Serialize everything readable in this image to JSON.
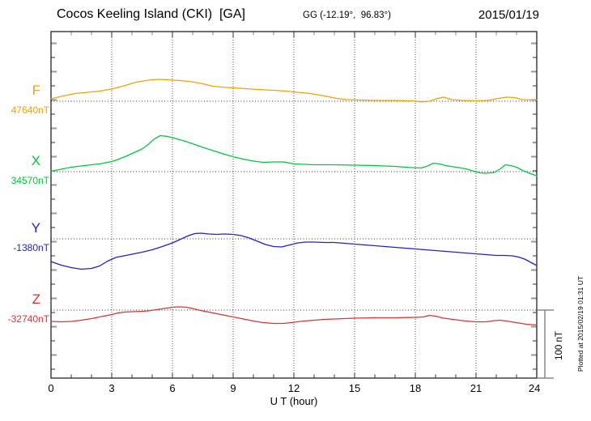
{
  "header": {
    "title": "Cocos Keeling Island (CKI)  [GA]",
    "coordinates": "GG (-12.19°,  96.83°)",
    "date": "2015/01/19"
  },
  "footer": {
    "plotted_note": "Plotted at 2015/02/19 01:31 UT"
  },
  "chart_data": {
    "type": "line",
    "title": "Cocos Keeling Island (CKI)  [GA]",
    "xlabel": "U T (hour)",
    "x_range_hours": [
      0,
      24
    ],
    "x_tick_labels": [
      "0",
      "3",
      "6",
      "9",
      "12",
      "15",
      "18",
      "21",
      "24"
    ],
    "grid": "dotted vertical lines every 3 hours; dotted horizontal baseline at each trace base value",
    "legend_position": "left margin, one colored letter and base value per trace",
    "scale_bar": {
      "label": "100 nT",
      "span_nT": 100
    },
    "series": [
      {
        "label": "F",
        "base_label": "47640nT",
        "base_nT": 47640,
        "color": "#F2A400",
        "points_units": "[hour UT, delta nT from base]",
        "points": [
          [
            0,
            3.6
          ],
          [
            0.6,
            7.7
          ],
          [
            1.2,
            11.3
          ],
          [
            1.8,
            13.1
          ],
          [
            2.4,
            14.9
          ],
          [
            3,
            17.9
          ],
          [
            3.6,
            22.6
          ],
          [
            4.2,
            28
          ],
          [
            4.8,
            31
          ],
          [
            5.2,
            32.1
          ],
          [
            5.6,
            31.9
          ],
          [
            6,
            31
          ],
          [
            6.4,
            30.4
          ],
          [
            6.8,
            29.2
          ],
          [
            7.2,
            27.4
          ],
          [
            7.6,
            25
          ],
          [
            8,
            22
          ],
          [
            8.4,
            20.8
          ],
          [
            9,
            19.6
          ],
          [
            9.6,
            18.5
          ],
          [
            10.2,
            17.3
          ],
          [
            11,
            16.1
          ],
          [
            11.6,
            14.9
          ],
          [
            12.2,
            13.1
          ],
          [
            12.8,
            11.3
          ],
          [
            13.4,
            8.3
          ],
          [
            14,
            4.8
          ],
          [
            14.6,
            2.4
          ],
          [
            15.2,
            1.8
          ],
          [
            16,
            1.2
          ],
          [
            17,
            1
          ],
          [
            17.8,
            0.6
          ],
          [
            18.3,
            -1
          ],
          [
            18.7,
            0
          ],
          [
            19.1,
            4.2
          ],
          [
            19.4,
            6
          ],
          [
            19.8,
            2.4
          ],
          [
            20.3,
            1.2
          ],
          [
            21,
            0.6
          ],
          [
            21.6,
            1.2
          ],
          [
            22.1,
            4.2
          ],
          [
            22.5,
            6
          ],
          [
            22.9,
            5.4
          ],
          [
            23.3,
            2.4
          ],
          [
            23.7,
            1.8
          ],
          [
            24,
            1.8
          ]
        ]
      },
      {
        "label": "X",
        "base_label": "34570nT",
        "base_nT": 34570,
        "color": "#00C83C",
        "points_units": "[hour UT, delta nT from base]",
        "points": [
          [
            0,
            0.6
          ],
          [
            0.5,
            3.6
          ],
          [
            1,
            6.5
          ],
          [
            1.5,
            8.3
          ],
          [
            2,
            10.1
          ],
          [
            2.5,
            11.9
          ],
          [
            3,
            14.9
          ],
          [
            3.3,
            17.9
          ],
          [
            3.7,
            22.6
          ],
          [
            4.1,
            28
          ],
          [
            4.5,
            33.3
          ],
          [
            4.8,
            40
          ],
          [
            5.1,
            48
          ],
          [
            5.4,
            53
          ],
          [
            5.7,
            52
          ],
          [
            6,
            50
          ],
          [
            6.5,
            45.8
          ],
          [
            7,
            41.1
          ],
          [
            7.5,
            35.7
          ],
          [
            8,
            31
          ],
          [
            8.5,
            26.2
          ],
          [
            9,
            22
          ],
          [
            9.5,
            18.5
          ],
          [
            10,
            15.5
          ],
          [
            10.5,
            13.7
          ],
          [
            11,
            14.3
          ],
          [
            11.5,
            14.3
          ],
          [
            12,
            11.3
          ],
          [
            13,
            10.1
          ],
          [
            14,
            10.1
          ],
          [
            15,
            9.5
          ],
          [
            16,
            8.9
          ],
          [
            17,
            7.7
          ],
          [
            17.8,
            6
          ],
          [
            18.3,
            5.4
          ],
          [
            18.6,
            8.3
          ],
          [
            18.9,
            12.5
          ],
          [
            19.2,
            11.3
          ],
          [
            19.5,
            8.9
          ],
          [
            20,
            6.5
          ],
          [
            20.5,
            4.2
          ],
          [
            20.9,
            0.6
          ],
          [
            21.2,
            -1.8
          ],
          [
            21.5,
            -2.4
          ],
          [
            21.9,
            -1.2
          ],
          [
            22.2,
            4.2
          ],
          [
            22.45,
            10.1
          ],
          [
            22.7,
            8.9
          ],
          [
            23,
            6.5
          ],
          [
            23.3,
            1.8
          ],
          [
            23.6,
            -1.8
          ],
          [
            23.8,
            -4.2
          ],
          [
            24,
            -6
          ]
        ]
      },
      {
        "label": "Y",
        "base_label": "-1380nT",
        "base_nT": -1380,
        "color": "#2222CC",
        "points_units": "[hour UT, delta nT from base]",
        "points": [
          [
            0,
            -33.3
          ],
          [
            0.5,
            -38.7
          ],
          [
            1,
            -42.3
          ],
          [
            1.5,
            -44.6
          ],
          [
            2,
            -43.5
          ],
          [
            2.4,
            -39.9
          ],
          [
            2.8,
            -32.7
          ],
          [
            3.2,
            -27.4
          ],
          [
            3.6,
            -25
          ],
          [
            4,
            -22.6
          ],
          [
            4.5,
            -19.6
          ],
          [
            5,
            -16.1
          ],
          [
            5.5,
            -11.3
          ],
          [
            6,
            -6
          ],
          [
            6.4,
            -0.6
          ],
          [
            6.8,
            4.8
          ],
          [
            7.1,
            7.7
          ],
          [
            7.4,
            8.3
          ],
          [
            7.8,
            7.1
          ],
          [
            8.2,
            6.5
          ],
          [
            8.6,
            7.1
          ],
          [
            9,
            6.5
          ],
          [
            9.4,
            4.8
          ],
          [
            9.8,
            1.2
          ],
          [
            10.2,
            -3.6
          ],
          [
            10.6,
            -8.3
          ],
          [
            11,
            -11.3
          ],
          [
            11.4,
            -11.9
          ],
          [
            11.8,
            -8.9
          ],
          [
            12.2,
            -6
          ],
          [
            12.6,
            -4.8
          ],
          [
            13,
            -4.8
          ],
          [
            13.5,
            -5.4
          ],
          [
            14,
            -5.4
          ],
          [
            14.5,
            -6.5
          ],
          [
            15,
            -7.7
          ],
          [
            15.5,
            -8.9
          ],
          [
            16,
            -10.1
          ],
          [
            16.5,
            -11.3
          ],
          [
            17,
            -12.5
          ],
          [
            17.5,
            -13.7
          ],
          [
            18,
            -14.9
          ],
          [
            18.5,
            -16.1
          ],
          [
            19,
            -17.3
          ],
          [
            19.5,
            -18.5
          ],
          [
            20,
            -19.6
          ],
          [
            20.5,
            -20.8
          ],
          [
            21,
            -22
          ],
          [
            21.5,
            -23.2
          ],
          [
            22,
            -24.4
          ],
          [
            22.4,
            -24.4
          ],
          [
            22.8,
            -25
          ],
          [
            23.1,
            -26.8
          ],
          [
            23.4,
            -29.8
          ],
          [
            23.7,
            -34.5
          ],
          [
            24,
            -39.3
          ]
        ]
      },
      {
        "label": "Z",
        "base_label": "-32740nT",
        "base_nT": -32740,
        "color": "#E03333",
        "points_units": "[hour UT, delta nT from base]",
        "points": [
          [
            0,
            -16.7
          ],
          [
            0.5,
            -17.3
          ],
          [
            1,
            -16.7
          ],
          [
            1.5,
            -14.9
          ],
          [
            2,
            -12.5
          ],
          [
            2.5,
            -9.5
          ],
          [
            3,
            -6.5
          ],
          [
            3.3,
            -4.2
          ],
          [
            3.6,
            -3
          ],
          [
            4,
            -2.4
          ],
          [
            4.5,
            -1.8
          ],
          [
            4.8,
            -1.2
          ],
          [
            5.2,
            0.6
          ],
          [
            5.6,
            2.4
          ],
          [
            6,
            4.2
          ],
          [
            6.3,
            4.8
          ],
          [
            6.7,
            4.2
          ],
          [
            7,
            2.4
          ],
          [
            7.3,
            0
          ],
          [
            7.7,
            -2.4
          ],
          [
            8,
            -4.2
          ],
          [
            8.5,
            -7.1
          ],
          [
            9,
            -10.1
          ],
          [
            9.5,
            -13.1
          ],
          [
            10,
            -16.1
          ],
          [
            10.5,
            -18.5
          ],
          [
            11,
            -19.6
          ],
          [
            11.5,
            -19.6
          ],
          [
            12,
            -17.9
          ],
          [
            12.5,
            -16.1
          ],
          [
            13,
            -14.9
          ],
          [
            13.5,
            -13.7
          ],
          [
            14,
            -13.1
          ],
          [
            14.5,
            -12.5
          ],
          [
            15,
            -11.9
          ],
          [
            16,
            -11.3
          ],
          [
            17,
            -11.3
          ],
          [
            18,
            -10.7
          ],
          [
            18.4,
            -10.1
          ],
          [
            18.7,
            -7.7
          ],
          [
            19,
            -8.9
          ],
          [
            19.4,
            -11.9
          ],
          [
            20,
            -14.3
          ],
          [
            20.5,
            -16.1
          ],
          [
            21,
            -17.3
          ],
          [
            21.5,
            -17.3
          ],
          [
            21.9,
            -15.5
          ],
          [
            22.2,
            -14.9
          ],
          [
            22.5,
            -16.1
          ],
          [
            23,
            -18.5
          ],
          [
            23.5,
            -20.8
          ],
          [
            24,
            -22
          ]
        ]
      }
    ]
  }
}
